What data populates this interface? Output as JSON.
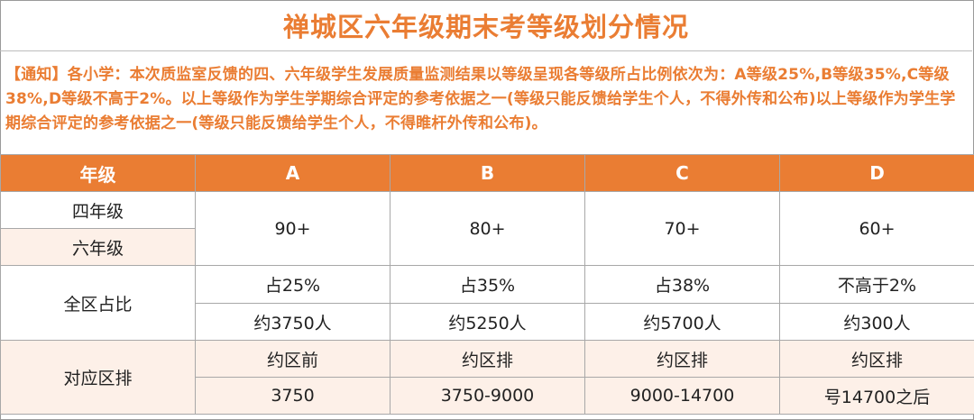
{
  "title": "禅城区六年级期末考等级划分情况",
  "notice": "【通知】各小学：本次质监室反馈的四、六年级学生发展质量监测结果以等级呈现各等级所占比例依次为：A等级25%,B等级35%,C等级38%,D等级不高于2%。以上等级作为学生学期综合评定的参考依据之一(等级只能反馈给学生个人，不得外传和公布)以上等级作为学生学期综合评定的参考依据之一(等级只能反馈给学生个人，不得睢杆外传和公布)。",
  "table": {
    "headers": [
      "年级",
      "A",
      "B",
      "C",
      "D"
    ],
    "grade_rows": [
      "四年级",
      "六年级"
    ],
    "scores": [
      "90+",
      "80+",
      "70+",
      "60+"
    ],
    "share_label": "全区占比",
    "shares": [
      "占25%",
      "占35%",
      "占38%",
      "不高于2%"
    ],
    "counts": [
      "约3750人",
      "约5250人",
      "约5700人",
      "约300人"
    ],
    "rank_label": "对应区排",
    "rank_top": [
      "约区前",
      "约区排",
      "约区排",
      "约区排"
    ],
    "rank_bottom": [
      "3750",
      "3750-9000",
      "9000-14700",
      "号14700之后"
    ]
  },
  "colors": {
    "accent": "#ea7d33",
    "peach": "#fdf0e8"
  }
}
